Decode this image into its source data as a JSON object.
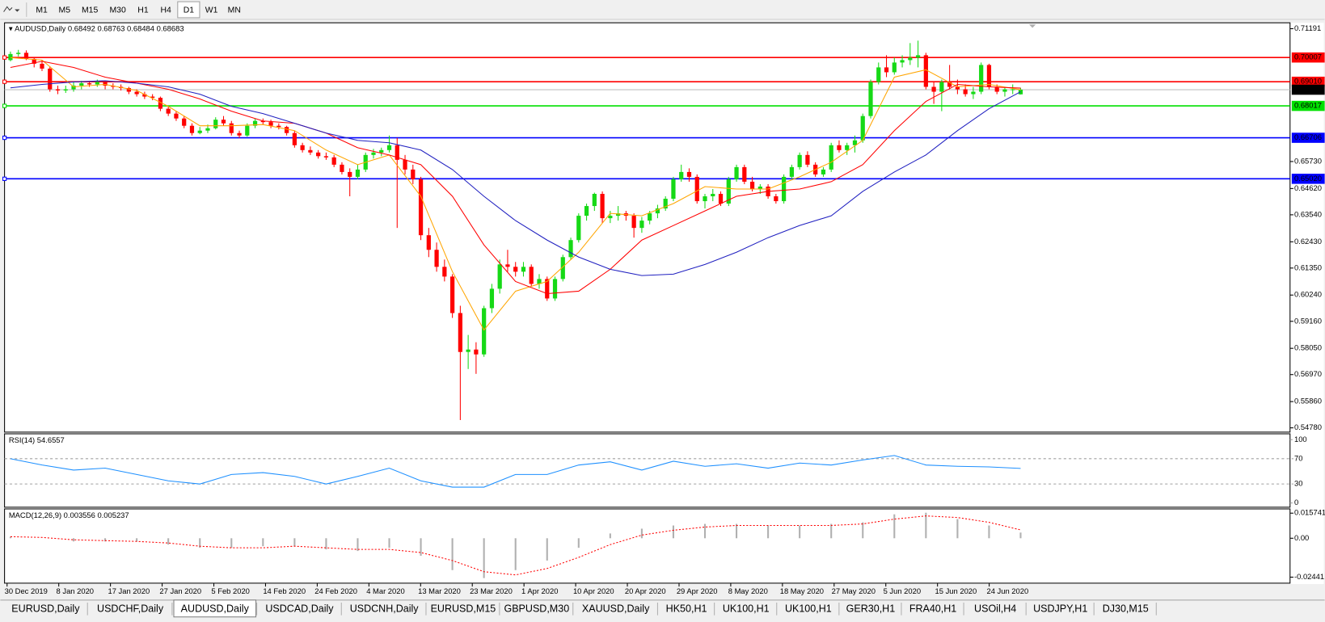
{
  "toolbar": {
    "timeframes": [
      "M1",
      "M5",
      "M15",
      "M30",
      "H1",
      "H4",
      "D1",
      "W1",
      "MN"
    ],
    "active": "D1"
  },
  "chart_data": {
    "type": "candlestick",
    "title": "AUDUSD,Daily",
    "up_color": "#16d916",
    "down_color": "#ff0000",
    "ylim": [
      0.54605,
      0.71434
    ],
    "yticks": [
      0.71191,
      {
        "value": 0.6573,
        "label": "0.65730"
      },
      {
        "value": 0.6462,
        "label": "0.64620"
      },
      {
        "value": 0.6354,
        "label": "0.63540"
      },
      {
        "value": 0.6243,
        "label": "0.62430"
      },
      {
        "value": 0.6135,
        "label": "0.61350"
      },
      {
        "value": 0.6024,
        "label": "0.60240"
      },
      {
        "value": 0.5916,
        "label": "0.59160"
      },
      {
        "value": 0.5805,
        "label": "0.58050"
      },
      {
        "value": 0.5697,
        "label": "0.56970"
      },
      {
        "value": 0.5586,
        "label": "0.55860"
      },
      {
        "value": 0.5478,
        "label": "0.54780"
      }
    ],
    "x_labels": [
      "30 Dec 2019",
      "8 Jan 2020",
      "17 Jan 2020",
      "27 Jan 2020",
      "5 Feb 2020",
      "14 Feb 2020",
      "24 Feb 2020",
      "4 Mar 2020",
      "13 Mar 2020",
      "23 Mar 2020",
      "1 Apr 2020",
      "10 Apr 2020",
      "20 Apr 2020",
      "29 Apr 2020",
      "8 May 2020",
      "18 May 2020",
      "27 May 2020",
      "5 Jun 2020",
      "15 Jun 2020",
      "24 Jun 2020"
    ],
    "levels": [
      {
        "value": 0.70007,
        "color": "#ff0000"
      },
      {
        "value": 0.6901,
        "label": "0.69010",
        "color": "#ff0000"
      },
      {
        "value": 0.68017,
        "color": "#00e000"
      },
      {
        "value": 0.66706,
        "color": "#0000ff"
      },
      {
        "value": 0.6502,
        "label": "0.65020",
        "color": "#0000ff"
      }
    ],
    "candles": [
      [
        0.699,
        0.7025,
        0.6985,
        0.7015
      ],
      [
        0.7015,
        0.7032,
        0.7005,
        0.702
      ],
      [
        0.702,
        0.703,
        0.699,
        0.6995
      ],
      [
        0.6995,
        0.7,
        0.696,
        0.6975
      ],
      [
        0.6975,
        0.699,
        0.6945,
        0.6955
      ],
      [
        0.6955,
        0.6965,
        0.686,
        0.687
      ],
      [
        0.687,
        0.6885,
        0.685,
        0.6865
      ],
      [
        0.6865,
        0.6885,
        0.6855,
        0.687
      ],
      [
        0.687,
        0.69,
        0.686,
        0.6885
      ],
      [
        0.6885,
        0.6905,
        0.687,
        0.6895
      ],
      [
        0.6895,
        0.6905,
        0.688,
        0.689
      ],
      [
        0.689,
        0.691,
        0.688,
        0.69
      ],
      [
        0.69,
        0.6905,
        0.687,
        0.6885
      ],
      [
        0.6885,
        0.6895,
        0.687,
        0.688
      ],
      [
        0.688,
        0.689,
        0.6865,
        0.6875
      ],
      [
        0.6875,
        0.688,
        0.685,
        0.686
      ],
      [
        0.686,
        0.687,
        0.684,
        0.685
      ],
      [
        0.685,
        0.686,
        0.683,
        0.684
      ],
      [
        0.684,
        0.685,
        0.6825,
        0.6835
      ],
      [
        0.6835,
        0.684,
        0.678,
        0.679
      ],
      [
        0.679,
        0.68,
        0.676,
        0.677
      ],
      [
        0.677,
        0.678,
        0.674,
        0.675
      ],
      [
        0.675,
        0.676,
        0.671,
        0.672
      ],
      [
        0.672,
        0.673,
        0.668,
        0.669
      ],
      [
        0.669,
        0.6715,
        0.6685,
        0.67
      ],
      [
        0.67,
        0.6725,
        0.669,
        0.671
      ],
      [
        0.671,
        0.6755,
        0.6705,
        0.6745
      ],
      [
        0.6745,
        0.676,
        0.672,
        0.673
      ],
      [
        0.673,
        0.674,
        0.668,
        0.669
      ],
      [
        0.669,
        0.67,
        0.667,
        0.668
      ],
      [
        0.668,
        0.673,
        0.6675,
        0.672
      ],
      [
        0.672,
        0.675,
        0.671,
        0.674
      ],
      [
        0.674,
        0.675,
        0.6725,
        0.6735
      ],
      [
        0.6735,
        0.6745,
        0.671,
        0.672
      ],
      [
        0.672,
        0.673,
        0.6705,
        0.6715
      ],
      [
        0.6715,
        0.672,
        0.668,
        0.669
      ],
      [
        0.669,
        0.67,
        0.663,
        0.664
      ],
      [
        0.664,
        0.665,
        0.661,
        0.662
      ],
      [
        0.662,
        0.6635,
        0.66,
        0.661
      ],
      [
        0.661,
        0.662,
        0.6585,
        0.6595
      ],
      [
        0.6595,
        0.661,
        0.658,
        0.659
      ],
      [
        0.659,
        0.66,
        0.655,
        0.656
      ],
      [
        0.656,
        0.657,
        0.652,
        0.653
      ],
      [
        0.653,
        0.6545,
        0.643,
        0.651
      ],
      [
        0.651,
        0.656,
        0.65,
        0.654
      ],
      [
        0.654,
        0.661,
        0.653,
        0.66
      ],
      [
        0.66,
        0.6625,
        0.6585,
        0.661
      ],
      [
        0.661,
        0.663,
        0.6595,
        0.662
      ],
      [
        0.662,
        0.668,
        0.661,
        0.664
      ],
      [
        0.664,
        0.667,
        0.63,
        0.658
      ],
      [
        0.658,
        0.66,
        0.652,
        0.654
      ],
      [
        0.654,
        0.656,
        0.648,
        0.65
      ],
      [
        0.65,
        0.651,
        0.625,
        0.627
      ],
      [
        0.627,
        0.63,
        0.618,
        0.621
      ],
      [
        0.621,
        0.624,
        0.612,
        0.614
      ],
      [
        0.614,
        0.617,
        0.608,
        0.61
      ],
      [
        0.61,
        0.611,
        0.593,
        0.595
      ],
      [
        0.595,
        0.598,
        0.551,
        0.579
      ],
      [
        0.579,
        0.586,
        0.572,
        0.58
      ],
      [
        0.58,
        0.583,
        0.57,
        0.578
      ],
      [
        0.578,
        0.598,
        0.577,
        0.597
      ],
      [
        0.597,
        0.607,
        0.595,
        0.605
      ],
      [
        0.605,
        0.617,
        0.603,
        0.615
      ],
      [
        0.615,
        0.621,
        0.612,
        0.614
      ],
      [
        0.614,
        0.616,
        0.61,
        0.612
      ],
      [
        0.612,
        0.616,
        0.61,
        0.614
      ],
      [
        0.614,
        0.615,
        0.606,
        0.607
      ],
      [
        0.607,
        0.611,
        0.605,
        0.609
      ],
      [
        0.609,
        0.61,
        0.6,
        0.601
      ],
      [
        0.601,
        0.61,
        0.6,
        0.609
      ],
      [
        0.609,
        0.619,
        0.608,
        0.618
      ],
      [
        0.618,
        0.626,
        0.617,
        0.625
      ],
      [
        0.625,
        0.636,
        0.624,
        0.635
      ],
      [
        0.635,
        0.64,
        0.633,
        0.639
      ],
      [
        0.639,
        0.6445,
        0.637,
        0.644
      ],
      [
        0.644,
        0.645,
        0.632,
        0.634
      ],
      [
        0.634,
        0.637,
        0.632,
        0.635
      ],
      [
        0.635,
        0.639,
        0.633,
        0.636
      ],
      [
        0.636,
        0.637,
        0.633,
        0.635
      ],
      [
        0.635,
        0.636,
        0.626,
        0.63
      ],
      [
        0.63,
        0.6345,
        0.628,
        0.633
      ],
      [
        0.633,
        0.637,
        0.6315,
        0.636
      ],
      [
        0.636,
        0.6395,
        0.634,
        0.638
      ],
      [
        0.638,
        0.643,
        0.637,
        0.642
      ],
      [
        0.642,
        0.651,
        0.641,
        0.65
      ],
      [
        0.65,
        0.656,
        0.649,
        0.653
      ],
      [
        0.653,
        0.6545,
        0.649,
        0.651
      ],
      [
        0.651,
        0.652,
        0.64,
        0.641
      ],
      [
        0.641,
        0.644,
        0.638,
        0.643
      ],
      [
        0.643,
        0.646,
        0.641,
        0.644
      ],
      [
        0.644,
        0.645,
        0.639,
        0.64
      ],
      [
        0.64,
        0.651,
        0.639,
        0.65
      ],
      [
        0.65,
        0.656,
        0.649,
        0.655
      ],
      [
        0.655,
        0.656,
        0.648,
        0.649
      ],
      [
        0.649,
        0.651,
        0.645,
        0.646
      ],
      [
        0.646,
        0.648,
        0.644,
        0.647
      ],
      [
        0.647,
        0.648,
        0.642,
        0.643
      ],
      [
        0.643,
        0.644,
        0.64,
        0.641
      ],
      [
        0.641,
        0.652,
        0.64,
        0.651
      ],
      [
        0.651,
        0.656,
        0.65,
        0.655
      ],
      [
        0.655,
        0.661,
        0.654,
        0.66
      ],
      [
        0.66,
        0.6615,
        0.655,
        0.656
      ],
      [
        0.656,
        0.657,
        0.651,
        0.652
      ],
      [
        0.652,
        0.655,
        0.651,
        0.654
      ],
      [
        0.654,
        0.665,
        0.653,
        0.664
      ],
      [
        0.664,
        0.666,
        0.661,
        0.662
      ],
      [
        0.662,
        0.665,
        0.66,
        0.664
      ],
      [
        0.664,
        0.668,
        0.661,
        0.666
      ],
      [
        0.666,
        0.677,
        0.665,
        0.676
      ],
      [
        0.676,
        0.691,
        0.675,
        0.69
      ],
      [
        0.69,
        0.698,
        0.689,
        0.696
      ],
      [
        0.696,
        0.701,
        0.692,
        0.694
      ],
      [
        0.694,
        0.7,
        0.693,
        0.698
      ],
      [
        0.698,
        0.701,
        0.696,
        0.699
      ],
      [
        0.699,
        0.706,
        0.697,
        0.7
      ],
      [
        0.7,
        0.707,
        0.696,
        0.701
      ],
      [
        0.701,
        0.702,
        0.687,
        0.688
      ],
      [
        0.688,
        0.69,
        0.681,
        0.686
      ],
      [
        0.686,
        0.691,
        0.678,
        0.69
      ],
      [
        0.69,
        0.697,
        0.687,
        0.688
      ],
      [
        0.688,
        0.691,
        0.685,
        0.687
      ],
      [
        0.687,
        0.689,
        0.684,
        0.685
      ],
      [
        0.685,
        0.688,
        0.683,
        0.686
      ],
      [
        0.686,
        0.698,
        0.685,
        0.697
      ],
      [
        0.697,
        0.6975,
        0.687,
        0.688
      ],
      [
        0.688,
        0.689,
        0.685,
        0.686
      ],
      [
        0.686,
        0.688,
        0.684,
        0.687
      ],
      [
        0.687,
        0.689,
        0.685,
        0.687
      ],
      [
        0.68492,
        0.68763,
        0.68484,
        0.68683
      ]
    ],
    "indicator_x": [
      0,
      4,
      8,
      12,
      16,
      20,
      24,
      28,
      32,
      36,
      40,
      44,
      48,
      52,
      56,
      60,
      64,
      68,
      72,
      76,
      80,
      84,
      88,
      92,
      96,
      100,
      104,
      108,
      112,
      116,
      120,
      124,
      128
    ],
    "moving_averages": [
      {
        "color": "#ffa500",
        "values": [
          0.7,
          0.699,
          0.688,
          0.689,
          0.6865,
          0.68,
          0.672,
          0.672,
          0.6725,
          0.67,
          0.662,
          0.656,
          0.66,
          0.643,
          0.612,
          0.588,
          0.604,
          0.608,
          0.62,
          0.636,
          0.635,
          0.64,
          0.647,
          0.646,
          0.646,
          0.651,
          0.657,
          0.666,
          0.692,
          0.695,
          0.688,
          0.689,
          0.6868
        ]
      },
      {
        "color": "#ff0000",
        "values": [
          0.696,
          0.6985,
          0.696,
          0.692,
          0.6895,
          0.687,
          0.683,
          0.678,
          0.674,
          0.673,
          0.669,
          0.663,
          0.66,
          0.656,
          0.643,
          0.623,
          0.608,
          0.603,
          0.604,
          0.613,
          0.625,
          0.631,
          0.637,
          0.643,
          0.645,
          0.646,
          0.649,
          0.656,
          0.67,
          0.682,
          0.689,
          0.688,
          0.6875
        ]
      },
      {
        "color": "#2020c0",
        "values": [
          0.6876,
          0.689,
          0.69,
          0.6905,
          0.6895,
          0.688,
          0.685,
          0.68,
          0.677,
          0.673,
          0.669,
          0.666,
          0.665,
          0.662,
          0.654,
          0.643,
          0.633,
          0.625,
          0.618,
          0.613,
          0.6104,
          0.611,
          0.615,
          0.62,
          0.626,
          0.631,
          0.635,
          0.645,
          0.653,
          0.66,
          0.67,
          0.679,
          0.686
        ]
      }
    ],
    "rsi": {
      "title": "RSI(14) 54.6557",
      "color": "#1e90ff",
      "ylim": [
        -6.7,
        109.3
      ],
      "yticks": [
        100,
        70,
        30,
        0
      ],
      "values": [
        70,
        60,
        52,
        55,
        45,
        35,
        30,
        45,
        48,
        42,
        30,
        42,
        55,
        35,
        25,
        25,
        45,
        45,
        60,
        65,
        52,
        66,
        58,
        62,
        55,
        63,
        60,
        68,
        75,
        60,
        58,
        57,
        54.6557
      ]
    },
    "macd": {
      "title": "MACD(12,26,9) 0.003556 0.005237",
      "histogram_color": "#b0b0b0",
      "signal_color": "#ff0000",
      "ylim": [
        -0.0282,
        0.0184
      ],
      "yticks": [
        0.015741,
        {
          "value": 0,
          "label": "0.00"
        },
        {
          "value": -0.02441,
          "label": "-0.02441"
        }
      ],
      "histogram": [
        0.001,
        0.0,
        -0.002,
        -0.002,
        -0.002,
        -0.004,
        -0.006,
        -0.006,
        -0.005,
        -0.005,
        -0.007,
        -0.008,
        -0.006,
        -0.011,
        -0.02,
        -0.025,
        -0.02,
        -0.014,
        -0.006,
        0.003,
        0.006,
        0.008,
        0.009,
        0.009,
        0.008,
        0.008,
        0.009,
        0.01,
        0.015,
        0.016,
        0.012,
        0.008,
        0.003556
      ],
      "signal": [
        0.001,
        0.0005,
        -0.001,
        -0.0015,
        -0.002,
        -0.003,
        -0.005,
        -0.006,
        -0.006,
        -0.005,
        -0.006,
        -0.007,
        -0.007,
        -0.009,
        -0.014,
        -0.021,
        -0.023,
        -0.019,
        -0.012,
        -0.004,
        0.002,
        0.005,
        0.007,
        0.008,
        0.008,
        0.008,
        0.008,
        0.009,
        0.012,
        0.014,
        0.013,
        0.01,
        0.005237
      ]
    }
  },
  "tabs": {
    "items": [
      "EURUSD,Daily",
      "USDCHF,Daily",
      "AUDUSD,Daily",
      "USDCAD,Daily",
      "USDCNH,Daily",
      "EURUSD,M15",
      "GBPUSD,M30",
      "XAUUSD,Daily",
      "HK50,H1",
      "UK100,H1",
      "UK100,H1",
      "GER30,H1",
      "FRA40,H1",
      "USOil,H4",
      "USDJPY,H1",
      "DJ30,M15"
    ],
    "active": 2
  }
}
